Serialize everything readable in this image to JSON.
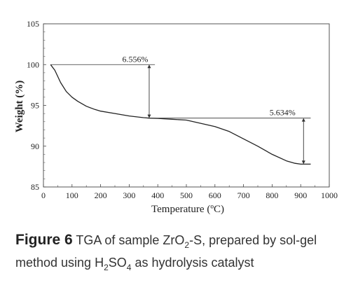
{
  "chart_data": {
    "type": "line",
    "xlabel": "Temperature (ºC)",
    "ylabel": "Weight (%)",
    "xlim": [
      0,
      1000
    ],
    "ylim": [
      85,
      105
    ],
    "xticks": [
      "0",
      "100",
      "200",
      "300",
      "400",
      "500",
      "600",
      "700",
      "800",
      "900",
      "1000"
    ],
    "yticks": [
      "85",
      "90",
      "95",
      "100",
      "105"
    ],
    "grid": false,
    "x": [
      25,
      40,
      60,
      80,
      100,
      120,
      150,
      180,
      200,
      250,
      300,
      350,
      370,
      400,
      450,
      500,
      550,
      600,
      650,
      700,
      750,
      800,
      850,
      880,
      900,
      920,
      935
    ],
    "y": [
      100.0,
      99.3,
      97.8,
      96.7,
      96.0,
      95.5,
      94.9,
      94.5,
      94.3,
      94.0,
      93.7,
      93.5,
      93.44,
      93.4,
      93.3,
      93.2,
      92.8,
      92.4,
      91.8,
      90.9,
      90.0,
      89.0,
      88.2,
      87.9,
      87.8,
      87.8,
      87.8
    ],
    "annotations": [
      {
        "text": "6.556%",
        "x": 370,
        "y_top": 100.0,
        "y_bottom": 93.44,
        "line_x_start": 25,
        "line_x_end": 390
      },
      {
        "text": "5.634%",
        "x": 910,
        "y_top": 93.44,
        "y_bottom": 87.8,
        "line_x_start": 370,
        "line_x_end": 935
      }
    ]
  },
  "caption": {
    "figure_label": "Figure 6",
    "line1_before_sub": " TGA of sample ZrO",
    "line1_sub": "2",
    "line1_after_sub": "-S, prepared by sol-gel",
    "line2_before_sub1": "method using H",
    "line2_sub1": "2",
    "line2_mid": "SO",
    "line2_sub2": "4",
    "line2_after": " as hydrolysis catalyst"
  }
}
